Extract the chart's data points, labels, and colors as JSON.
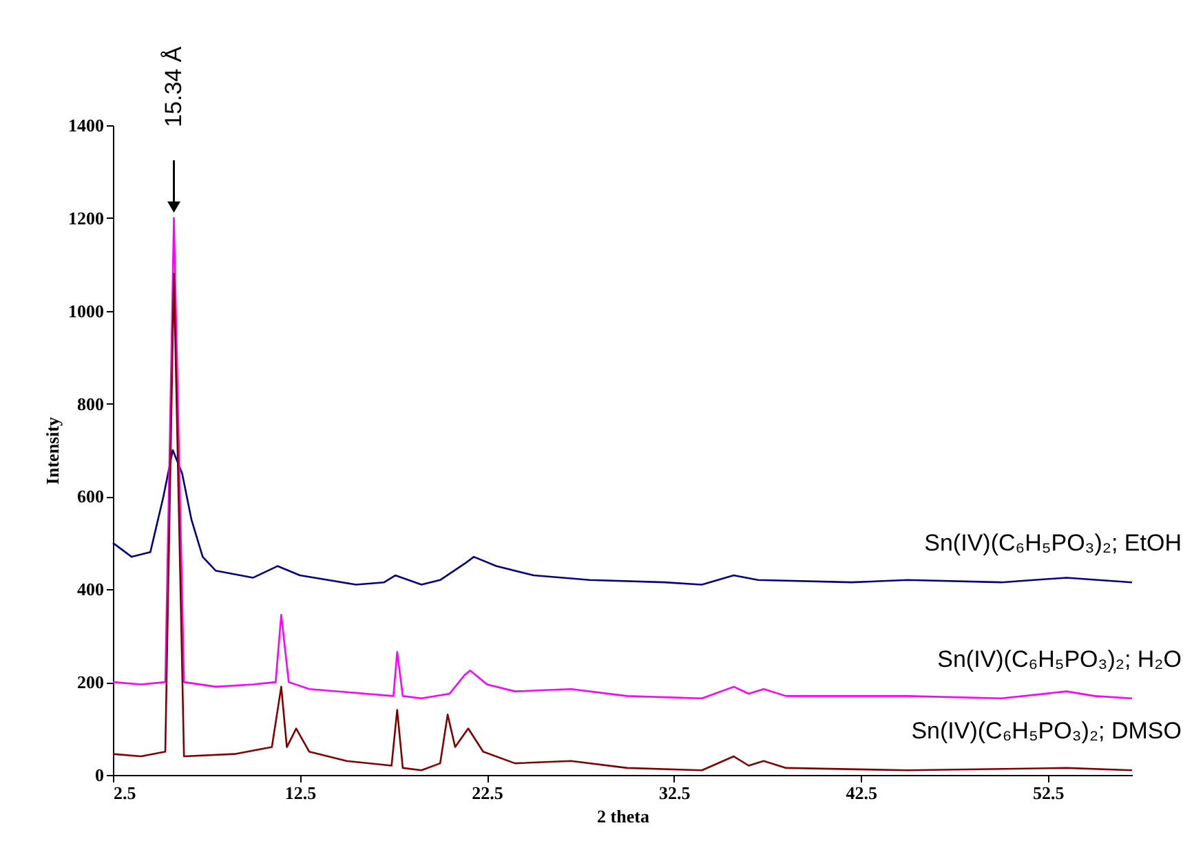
{
  "chart_data": {
    "type": "line",
    "xlabel": "2 theta",
    "ylabel": "Intensity",
    "xlim": [
      2.5,
      57
    ],
    "xticks": [
      2.5,
      12.5,
      22.5,
      32.5,
      42.5,
      52.5
    ],
    "ylim": [
      0,
      1400
    ],
    "yticks": [
      0,
      200,
      400,
      600,
      800,
      1000,
      1200,
      1400
    ],
    "grid": false,
    "marker": "none",
    "line_style": "solid",
    "annotations": [
      "15.34 Å"
    ],
    "series": [
      {
        "name": "Sn(IV)(C₆H₅PO₃)₂; EtOH",
        "color": "#000080",
        "x": [
          2.5,
          3.5,
          4.5,
          5.2,
          5.7,
          6.2,
          6.7,
          7.3,
          8,
          10,
          11.3,
          12.5,
          14,
          15.5,
          17,
          17.6,
          19,
          20,
          21.3,
          21.8,
          23,
          25,
          28,
          32,
          34,
          35.7,
          37,
          42,
          45,
          50,
          53.5,
          57
        ],
        "values": [
          500,
          470,
          480,
          600,
          700,
          650,
          550,
          470,
          440,
          425,
          450,
          430,
          420,
          410,
          415,
          430,
          410,
          420,
          455,
          470,
          450,
          430,
          420,
          415,
          410,
          430,
          420,
          415,
          420,
          415,
          425,
          415
        ]
      },
      {
        "name": "Sn(IV)(C₆H₅PO₃)₂; H₂O",
        "color": "#ff00ff",
        "x": [
          2.5,
          4,
          5.3,
          5.76,
          6.3,
          8,
          10,
          11.2,
          11.5,
          11.9,
          13,
          16,
          17.5,
          17.7,
          18,
          19,
          20.5,
          21.3,
          21.6,
          22.5,
          24,
          27,
          30,
          34,
          35.7,
          36.5,
          37.3,
          38.5,
          45,
          50,
          53.5,
          55,
          57
        ],
        "values": [
          200,
          195,
          200,
          1200,
          200,
          190,
          195,
          200,
          345,
          200,
          185,
          175,
          170,
          265,
          170,
          165,
          175,
          215,
          225,
          195,
          180,
          185,
          170,
          165,
          190,
          175,
          185,
          170,
          170,
          165,
          180,
          170,
          165
        ]
      },
      {
        "name": "Sn(IV)(C₆H₅PO₃)₂; DMSO",
        "color": "#800000",
        "x": [
          2.5,
          4,
          5.3,
          5.76,
          6.3,
          9,
          11,
          11.5,
          11.8,
          12.3,
          13,
          15,
          17.4,
          17.7,
          18,
          19,
          20,
          20.4,
          20.8,
          21.5,
          22.3,
          24,
          27,
          30,
          34,
          35.7,
          36.5,
          37.3,
          38.5,
          45,
          53.5,
          57
        ],
        "values": [
          45,
          40,
          50,
          1080,
          40,
          45,
          60,
          190,
          60,
          100,
          50,
          30,
          20,
          140,
          15,
          10,
          25,
          130,
          60,
          100,
          50,
          25,
          30,
          15,
          10,
          40,
          20,
          30,
          15,
          10,
          15,
          10
        ]
      }
    ]
  }
}
